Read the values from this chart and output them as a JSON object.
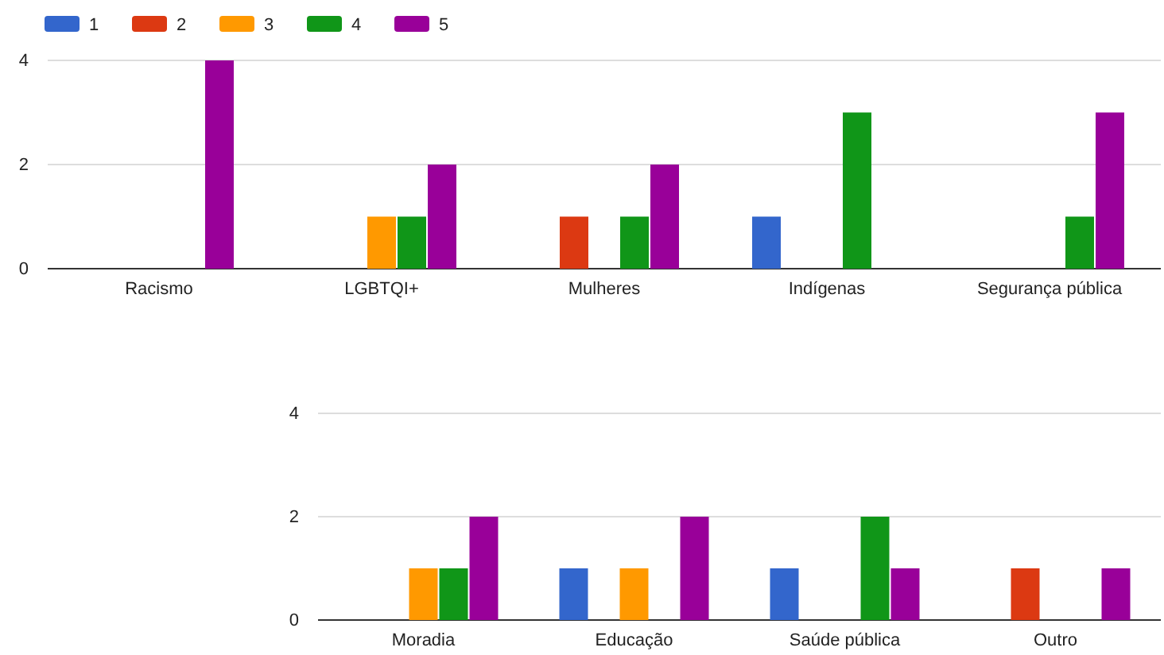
{
  "chart_data": [
    {
      "type": "bar",
      "categories": [
        "Racismo",
        "LGBTQI+",
        "Mulheres",
        "Indígenas",
        "Segurança pública"
      ],
      "ylim": [
        0,
        4
      ],
      "yticks": [
        0,
        2,
        4
      ],
      "grid": "y",
      "legend": "top left",
      "series": [
        {
          "name": "1",
          "color": "#3366cc",
          "values": [
            0,
            0,
            0,
            1,
            0
          ]
        },
        {
          "name": "2",
          "color": "#dc3912",
          "values": [
            0,
            0,
            1,
            0,
            0
          ]
        },
        {
          "name": "3",
          "color": "#ff9900",
          "values": [
            0,
            1,
            0,
            0,
            0
          ]
        },
        {
          "name": "4",
          "color": "#109618",
          "values": [
            0,
            1,
            1,
            3,
            1
          ]
        },
        {
          "name": "5",
          "color": "#990099",
          "values": [
            4,
            2,
            2,
            0,
            3
          ]
        }
      ]
    },
    {
      "type": "bar",
      "categories": [
        "Moradia",
        "Educação",
        "Saúde pública",
        "Outro"
      ],
      "ylim": [
        0,
        4
      ],
      "yticks": [
        0,
        2,
        4
      ],
      "grid": "y",
      "series": [
        {
          "color": "#3366cc",
          "values": [
            0,
            1,
            1,
            0
          ]
        },
        {
          "color": "#dc3912",
          "values": [
            0,
            0,
            0,
            1
          ]
        },
        {
          "color": "#ff9900",
          "values": [
            1,
            1,
            0,
            0
          ]
        },
        {
          "color": "#109618",
          "values": [
            1,
            0,
            2,
            0
          ]
        },
        {
          "color": "#990099",
          "values": [
            2,
            2,
            1,
            1
          ]
        }
      ]
    }
  ]
}
